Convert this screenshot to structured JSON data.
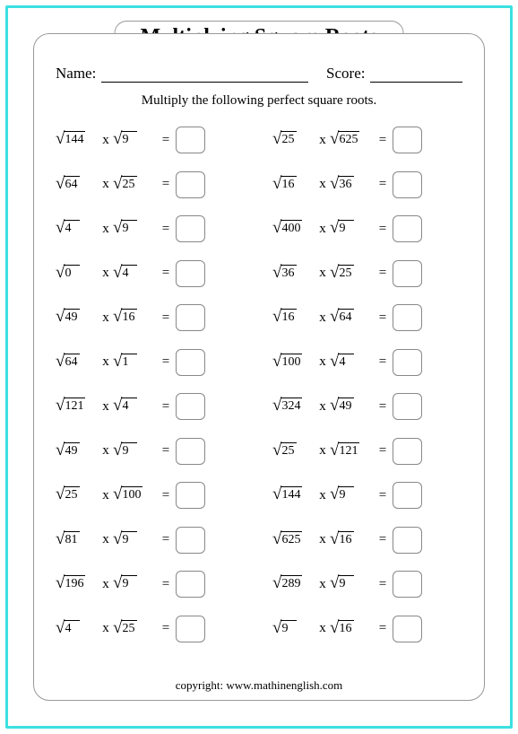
{
  "title": "Multiplying Square Roots",
  "name_label": "Name:",
  "score_label": "Score:",
  "instructions": "Multiply the following perfect square roots.",
  "times": "x",
  "equals": "=",
  "copyright": "copyright:   www.mathinenglish.com",
  "problems_left": [
    {
      "a": "144",
      "b": "9"
    },
    {
      "a": "64",
      "b": "25"
    },
    {
      "a": "4",
      "b": "9"
    },
    {
      "a": "0",
      "b": "4"
    },
    {
      "a": "49",
      "b": "16"
    },
    {
      "a": "64",
      "b": "1"
    },
    {
      "a": "121",
      "b": "4"
    },
    {
      "a": "49",
      "b": "9"
    },
    {
      "a": "25",
      "b": "100"
    },
    {
      "a": "81",
      "b": "9"
    },
    {
      "a": "196",
      "b": "9"
    },
    {
      "a": "4",
      "b": "25"
    }
  ],
  "problems_right": [
    {
      "a": "25",
      "b": "625"
    },
    {
      "a": "16",
      "b": "36"
    },
    {
      "a": "400",
      "b": "9"
    },
    {
      "a": "36",
      "b": "25"
    },
    {
      "a": "16",
      "b": "64"
    },
    {
      "a": "100",
      "b": "4"
    },
    {
      "a": "324",
      "b": "49"
    },
    {
      "a": "25",
      "b": "121"
    },
    {
      "a": "144",
      "b": "9"
    },
    {
      "a": "625",
      "b": "16"
    },
    {
      "a": "289",
      "b": "9"
    },
    {
      "a": "9",
      "b": "16"
    }
  ]
}
